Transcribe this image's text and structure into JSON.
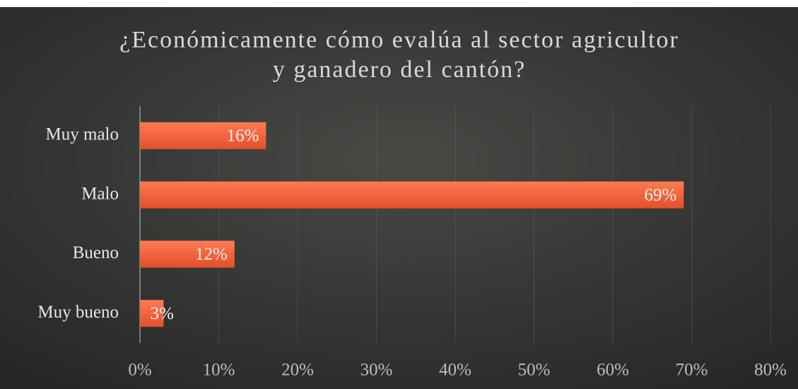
{
  "chart_data": {
    "type": "bar",
    "orientation": "horizontal",
    "title": "¿Económicamente cómo evalúa al sector agricultor y ganadero del cantón?",
    "categories": [
      "Muy malo",
      "Malo",
      "Bueno",
      "Muy bueno"
    ],
    "values": [
      16,
      69,
      12,
      3
    ],
    "value_labels": [
      "16%",
      "69%",
      "12%",
      "3%"
    ],
    "color": "#f2603a",
    "xlim": [
      0,
      80
    ],
    "xticks": [
      {
        "value": 0,
        "label": "0%"
      },
      {
        "value": 10,
        "label": "10%"
      },
      {
        "value": 20,
        "label": "20%"
      },
      {
        "value": 30,
        "label": "30%"
      },
      {
        "value": 40,
        "label": "40%"
      },
      {
        "value": 50,
        "label": "50%"
      },
      {
        "value": 60,
        "label": "60%"
      },
      {
        "value": 70,
        "label": "70%"
      },
      {
        "value": 80,
        "label": "80%"
      }
    ],
    "grid": true
  }
}
